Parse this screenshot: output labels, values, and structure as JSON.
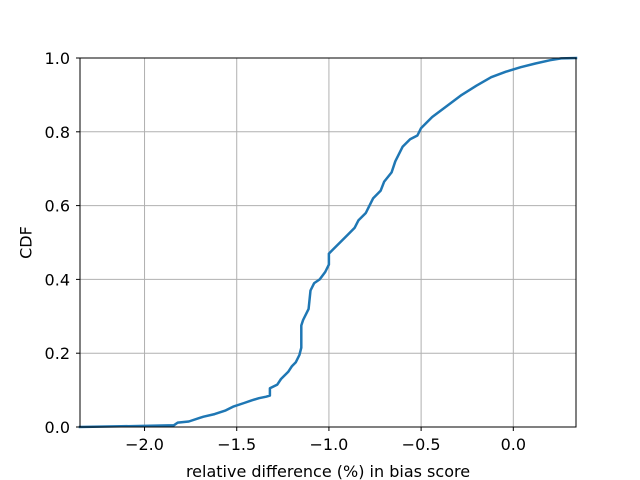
{
  "chart_data": {
    "type": "line",
    "xlabel": "relative difference (%) in bias score",
    "ylabel": "CDF",
    "xlim": [
      -2.35,
      0.34
    ],
    "ylim": [
      0.0,
      1.0
    ],
    "grid": true,
    "x_ticks": [
      {
        "value": -2.0,
        "label": "−2.0"
      },
      {
        "value": -1.5,
        "label": "−1.5"
      },
      {
        "value": -1.0,
        "label": "−1.0"
      },
      {
        "value": -0.5,
        "label": "−0.5"
      },
      {
        "value": 0.0,
        "label": "0.0"
      }
    ],
    "y_ticks": [
      {
        "value": 0.0,
        "label": "0.0"
      },
      {
        "value": 0.2,
        "label": "0.2"
      },
      {
        "value": 0.4,
        "label": "0.4"
      },
      {
        "value": 0.6,
        "label": "0.6"
      },
      {
        "value": 0.8,
        "label": "0.8"
      },
      {
        "value": 1.0,
        "label": "1.0"
      }
    ],
    "colors": {
      "line": "#1f77b4",
      "grid": "#b0b0b0",
      "axes": "#000000"
    },
    "series": [
      {
        "x": [
          -2.35,
          -2.0,
          -1.84,
          -1.82,
          -1.76,
          -1.7,
          -1.68,
          -1.62,
          -1.56,
          -1.52,
          -1.46,
          -1.42,
          -1.38,
          -1.34,
          -1.32,
          -1.32,
          -1.28,
          -1.26,
          -1.22,
          -1.2,
          -1.18,
          -1.16,
          -1.15,
          -1.15,
          -1.14,
          -1.12,
          -1.11,
          -1.1,
          -1.08,
          -1.05,
          -1.02,
          -1.0,
          -1.0,
          -0.98,
          -0.94,
          -0.9,
          -0.86,
          -0.84,
          -0.8,
          -0.78,
          -0.76,
          -0.72,
          -0.7,
          -0.66,
          -0.64,
          -0.62,
          -0.6,
          -0.56,
          -0.52,
          -0.5,
          -0.44,
          -0.36,
          -0.28,
          -0.2,
          -0.12,
          -0.04,
          0.04,
          0.12,
          0.2,
          0.26,
          0.34
        ],
        "y": [
          0.0,
          0.003,
          0.005,
          0.012,
          0.015,
          0.025,
          0.028,
          0.035,
          0.045,
          0.055,
          0.065,
          0.072,
          0.078,
          0.082,
          0.085,
          0.105,
          0.115,
          0.13,
          0.15,
          0.165,
          0.175,
          0.195,
          0.215,
          0.275,
          0.29,
          0.31,
          0.32,
          0.37,
          0.39,
          0.4,
          0.42,
          0.44,
          0.47,
          0.48,
          0.5,
          0.52,
          0.54,
          0.56,
          0.58,
          0.6,
          0.62,
          0.64,
          0.665,
          0.69,
          0.72,
          0.74,
          0.76,
          0.78,
          0.79,
          0.81,
          0.84,
          0.87,
          0.9,
          0.925,
          0.948,
          0.963,
          0.975,
          0.985,
          0.994,
          0.999,
          1.0
        ]
      }
    ]
  }
}
